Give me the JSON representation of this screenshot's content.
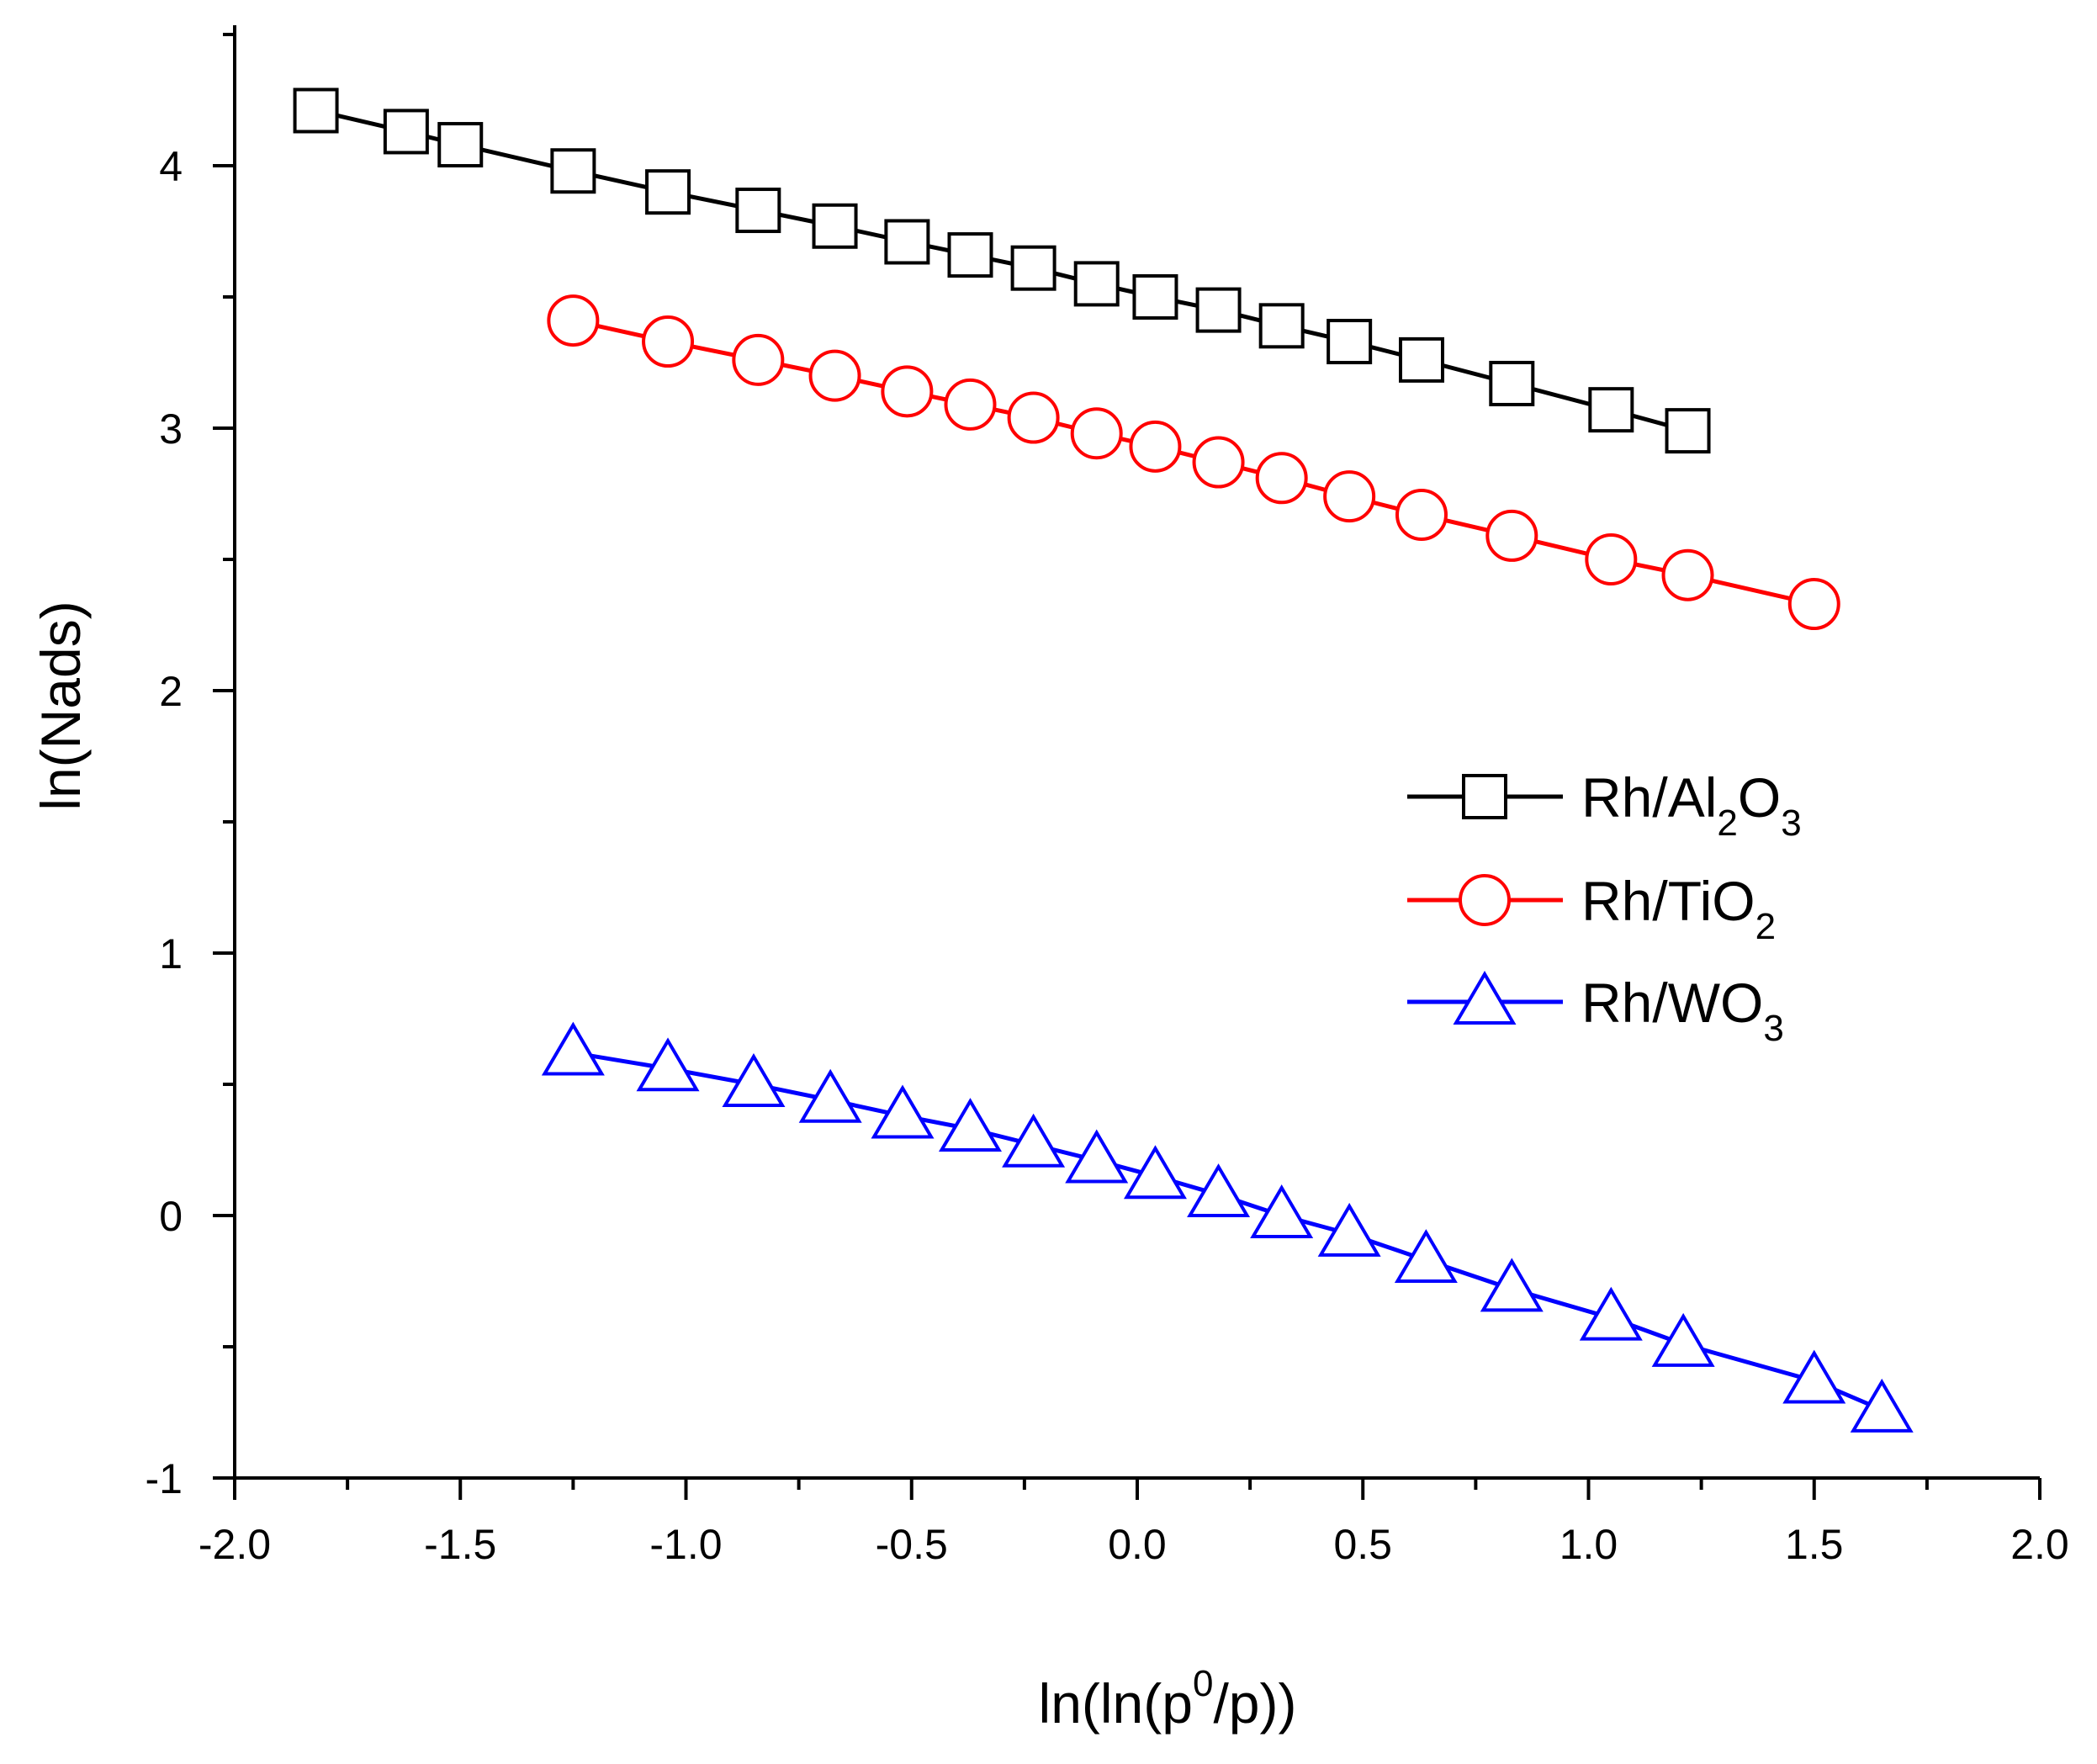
{
  "chart_data": {
    "type": "line",
    "title": "",
    "xlabel": {
      "prefix": "ln(ln(p",
      "sup": "0",
      "suffix": "/p))"
    },
    "ylabel": "ln(Nads)",
    "xlim": [
      -2.0,
      2.0
    ],
    "ylim": [
      -1,
      4.5
    ],
    "x_ticks": [
      -2.0,
      -1.5,
      -1.0,
      -0.5,
      0.0,
      0.5,
      1.0,
      1.5,
      2.0
    ],
    "x_tick_labels": [
      "-2.0",
      "-1.5",
      "-1.0",
      "-0.5",
      "0.0",
      "0.5",
      "1.0",
      "1.5",
      "2.0"
    ],
    "y_ticks": [
      -1,
      0,
      1,
      2,
      3,
      4
    ],
    "y_tick_labels": [
      "-1",
      "0",
      "1",
      "2",
      "3",
      "4"
    ],
    "legend_position": "center-right",
    "series": [
      {
        "name": "Rh/Al2O3",
        "label_parts": [
          {
            "text": "Rh/Al",
            "sub": false
          },
          {
            "text": "2",
            "sub": true
          },
          {
            "text": "O",
            "sub": false
          },
          {
            "text": "3",
            "sub": true
          }
        ],
        "color": "#000000",
        "marker": "square",
        "x": [
          -1.82,
          -1.62,
          -1.5,
          -1.25,
          -1.04,
          -0.84,
          -0.67,
          -0.51,
          -0.37,
          -0.23,
          -0.09,
          0.04,
          0.18,
          0.32,
          0.47,
          0.63,
          0.83,
          1.05,
          1.22
        ],
        "y": [
          4.21,
          4.13,
          4.08,
          3.98,
          3.9,
          3.83,
          3.77,
          3.71,
          3.66,
          3.61,
          3.55,
          3.5,
          3.45,
          3.39,
          3.33,
          3.26,
          3.17,
          3.07,
          2.99
        ]
      },
      {
        "name": "Rh/TiO2",
        "label_parts": [
          {
            "text": "Rh/TiO",
            "sub": false
          },
          {
            "text": "2",
            "sub": true
          }
        ],
        "color": "#ff0000",
        "marker": "circle",
        "x": [
          -1.25,
          -1.04,
          -0.84,
          -0.67,
          -0.51,
          -0.37,
          -0.23,
          -0.09,
          0.04,
          0.18,
          0.32,
          0.47,
          0.63,
          0.83,
          1.05,
          1.22,
          1.5
        ],
        "y": [
          3.41,
          3.33,
          3.26,
          3.2,
          3.14,
          3.09,
          3.04,
          2.98,
          2.93,
          2.87,
          2.81,
          2.74,
          2.67,
          2.59,
          2.5,
          2.44,
          2.33
        ]
      },
      {
        "name": "Rh/WO3",
        "label_parts": [
          {
            "text": "Rh/WO",
            "sub": false
          },
          {
            "text": "3",
            "sub": true
          }
        ],
        "color": "#0000ff",
        "marker": "triangle",
        "x": [
          -1.25,
          -1.04,
          -0.85,
          -0.68,
          -0.52,
          -0.37,
          -0.23,
          -0.09,
          0.04,
          0.18,
          0.32,
          0.47,
          0.64,
          0.83,
          1.05,
          1.21,
          1.5,
          1.65
        ],
        "y": [
          0.62,
          0.56,
          0.5,
          0.44,
          0.38,
          0.33,
          0.27,
          0.21,
          0.15,
          0.08,
          0.0,
          -0.07,
          -0.17,
          -0.28,
          -0.39,
          -0.49,
          -0.63,
          -0.74
        ]
      }
    ]
  }
}
